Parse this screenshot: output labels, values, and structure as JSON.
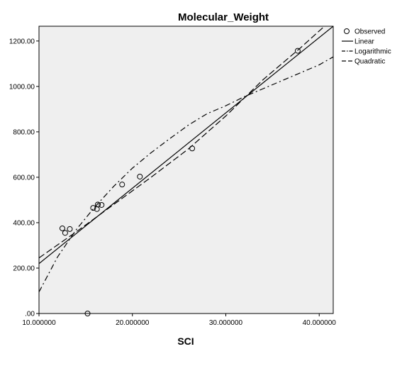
{
  "chart_data": {
    "type": "scatter",
    "title": "Molecular_Weight",
    "xlabel": "SCI",
    "ylabel": "",
    "xlim": [
      10,
      41.5
    ],
    "ylim": [
      0,
      1265
    ],
    "x_ticks": [
      10,
      20,
      30,
      40
    ],
    "x_tick_labels": [
      "10.000000",
      "20.000000",
      "30.000000",
      "40.000000"
    ],
    "y_ticks": [
      0,
      200,
      400,
      600,
      800,
      1000,
      1200
    ],
    "y_tick_labels": [
      ".00",
      "200.00",
      "400.00",
      "600.00",
      "800.00",
      "1000.00",
      "1200.00"
    ],
    "plot_background": "#efefef",
    "legend_position": "right",
    "observed": {
      "name": "Observed",
      "points": [
        [
          12.5,
          375
        ],
        [
          12.8,
          355
        ],
        [
          13.3,
          372
        ],
        [
          15.2,
          0
        ],
        [
          15.8,
          465
        ],
        [
          16.2,
          460
        ],
        [
          16.3,
          480
        ],
        [
          16.7,
          478
        ],
        [
          18.9,
          568
        ],
        [
          20.8,
          603
        ],
        [
          26.4,
          727
        ],
        [
          37.7,
          1157
        ]
      ]
    },
    "series": [
      {
        "name": "Linear",
        "dash": "solid",
        "values": [
          [
            10,
            220
          ],
          [
            41.5,
            1265
          ]
        ]
      },
      {
        "name": "Logarithmic",
        "dash": "dashdot",
        "values": [
          [
            10,
            95
          ],
          [
            12,
            250
          ],
          [
            14,
            370
          ],
          [
            16,
            470
          ],
          [
            18,
            560
          ],
          [
            20,
            640
          ],
          [
            22,
            708
          ],
          [
            24,
            770
          ],
          [
            26,
            830
          ],
          [
            28,
            880
          ],
          [
            30,
            915
          ],
          [
            32,
            955
          ],
          [
            34,
            990
          ],
          [
            36,
            1025
          ],
          [
            38,
            1060
          ],
          [
            40,
            1095
          ],
          [
            41.5,
            1130
          ]
        ]
      },
      {
        "name": "Quadratic",
        "dash": "dashed",
        "values": [
          [
            10,
            245
          ],
          [
            14,
            360
          ],
          [
            18,
            480
          ],
          [
            22,
            600
          ],
          [
            26,
            725
          ],
          [
            30,
            870
          ],
          [
            34,
            1030
          ],
          [
            38,
            1170
          ],
          [
            41.5,
            1300
          ]
        ]
      }
    ]
  }
}
